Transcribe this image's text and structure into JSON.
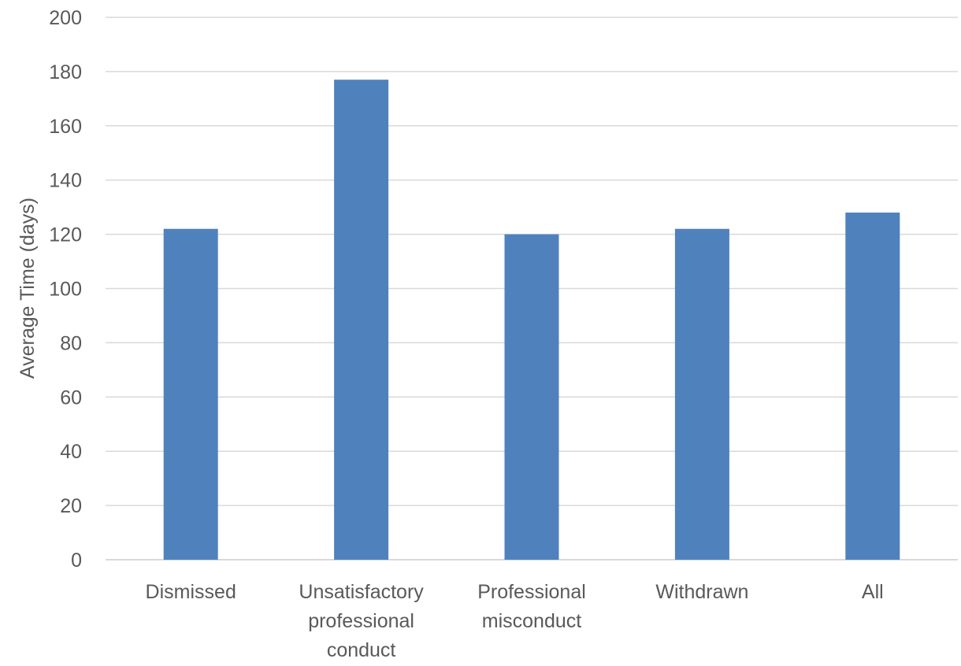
{
  "chart_data": {
    "type": "bar",
    "title": "",
    "xlabel": "",
    "ylabel": "Average Time (days)",
    "categories": [
      "Dismissed",
      "Unsatisfactory professional conduct",
      "Professional misconduct",
      "Withdrawn",
      "All"
    ],
    "category_lines": [
      [
        "Dismissed"
      ],
      [
        "Unsatisfactory",
        "professional",
        "conduct"
      ],
      [
        "Professional",
        "misconduct"
      ],
      [
        "Withdrawn"
      ],
      [
        "All"
      ]
    ],
    "values": [
      122,
      177,
      120,
      122,
      128
    ],
    "ylim": [
      0,
      200
    ],
    "yticks": [
      0,
      20,
      40,
      60,
      80,
      100,
      120,
      140,
      160,
      180,
      200
    ],
    "grid": true,
    "legend": "none",
    "colors": {
      "bar": "#4f81bd",
      "grid": "#d9d9d9",
      "axis": "#d9d9d9",
      "text": "#595959"
    }
  }
}
